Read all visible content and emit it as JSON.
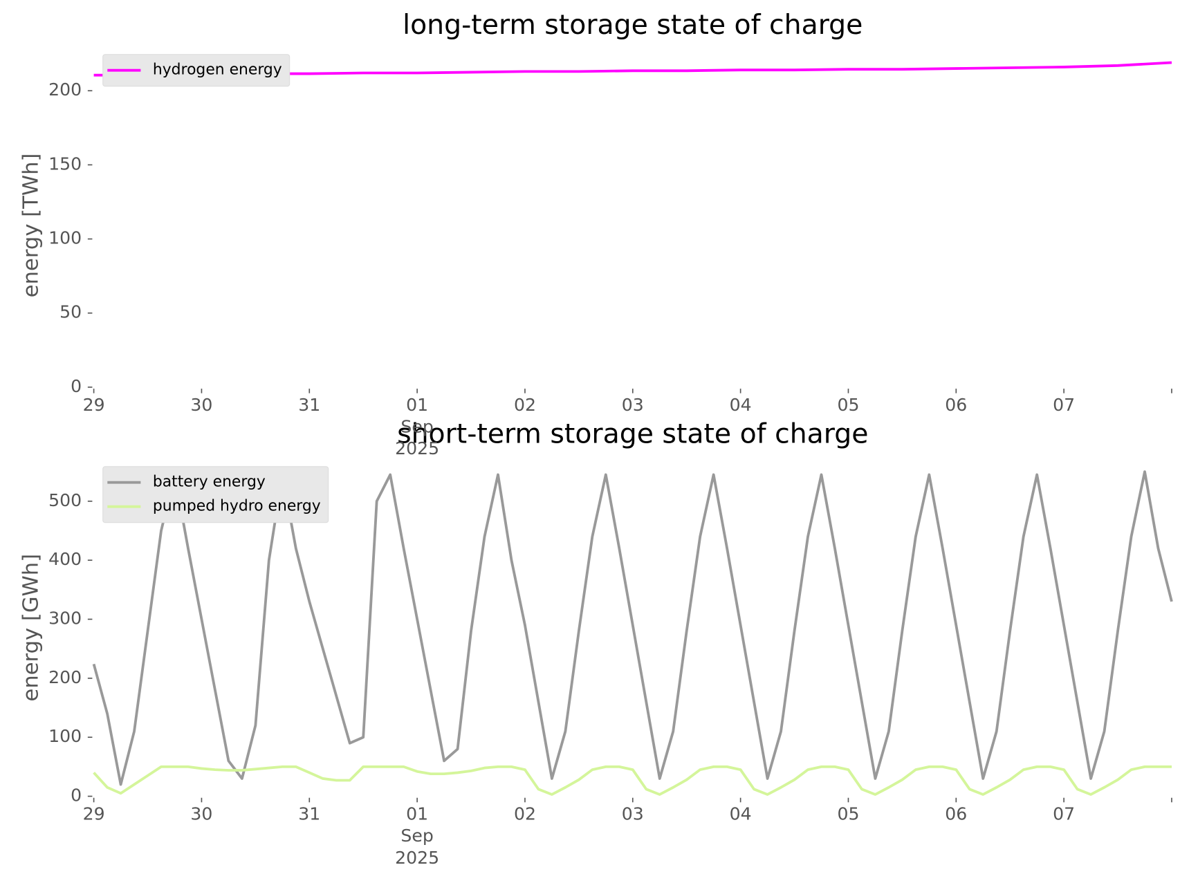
{
  "chart_data": [
    {
      "type": "line",
      "title": "long-term storage state of charge",
      "ylabel": "energy [TWh]",
      "x": [
        "2025-08-29 00:00",
        "2025-08-29 12:00",
        "2025-08-30 00:00",
        "2025-08-30 12:00",
        "2025-08-31 00:00",
        "2025-08-31 12:00",
        "2025-09-01 00:00",
        "2025-09-01 12:00",
        "2025-09-02 00:00",
        "2025-09-02 12:00",
        "2025-09-03 00:00",
        "2025-09-03 12:00",
        "2025-09-04 00:00",
        "2025-09-04 12:00",
        "2025-09-05 00:00",
        "2025-09-05 12:00",
        "2025-09-06 00:00",
        "2025-09-06 12:00",
        "2025-09-07 00:00",
        "2025-09-07 12:00",
        "2025-09-08 00:00"
      ],
      "xlim": [
        "2025-08-29",
        "2025-09-08"
      ],
      "xticks": [
        {
          "value": "2025-08-29",
          "label": "29"
        },
        {
          "value": "2025-08-30",
          "label": "30"
        },
        {
          "value": "2025-08-31",
          "label": "31"
        },
        {
          "value": "2025-09-01",
          "label": "01\nSep\n2025"
        },
        {
          "value": "2025-09-02",
          "label": "02"
        },
        {
          "value": "2025-09-03",
          "label": "03"
        },
        {
          "value": "2025-09-04",
          "label": "04"
        },
        {
          "value": "2025-09-05",
          "label": "05"
        },
        {
          "value": "2025-09-06",
          "label": "06"
        },
        {
          "value": "2025-09-07",
          "label": "07"
        },
        {
          "value": "2025-09-08",
          "label": null
        }
      ],
      "ylim": [
        0,
        225
      ],
      "yticks": [
        0,
        50,
        100,
        150,
        200
      ],
      "legend": "upper left",
      "series": [
        {
          "name": "hydrogen energy",
          "color": "#ff00ff",
          "values": [
            210.5,
            210.5,
            211,
            211.5,
            211.5,
            212,
            212,
            212.5,
            213,
            213,
            213.5,
            213.5,
            214,
            214,
            214.5,
            214.5,
            215,
            215.5,
            216,
            217,
            219
          ]
        }
      ]
    },
    {
      "type": "line",
      "title": "short-term storage state of charge",
      "ylabel": "energy [GWh]",
      "x": [
        "2025-08-29 00:00",
        "2025-08-29 03:00",
        "2025-08-29 06:00",
        "2025-08-29 09:00",
        "2025-08-29 12:00",
        "2025-08-29 15:00",
        "2025-08-29 18:00",
        "2025-08-29 21:00",
        "2025-08-30 00:00",
        "2025-08-30 03:00",
        "2025-08-30 06:00",
        "2025-08-30 09:00",
        "2025-08-30 12:00",
        "2025-08-30 15:00",
        "2025-08-30 18:00",
        "2025-08-30 21:00",
        "2025-08-31 00:00",
        "2025-08-31 03:00",
        "2025-08-31 06:00",
        "2025-08-31 09:00",
        "2025-08-31 12:00",
        "2025-08-31 15:00",
        "2025-08-31 18:00",
        "2025-08-31 21:00",
        "2025-09-01 00:00",
        "2025-09-01 03:00",
        "2025-09-01 06:00",
        "2025-09-01 09:00",
        "2025-09-01 12:00",
        "2025-09-01 15:00",
        "2025-09-01 18:00",
        "2025-09-01 21:00",
        "2025-09-02 00:00",
        "2025-09-02 03:00",
        "2025-09-02 06:00",
        "2025-09-02 09:00",
        "2025-09-02 12:00",
        "2025-09-02 15:00",
        "2025-09-02 18:00",
        "2025-09-02 21:00",
        "2025-09-03 00:00",
        "2025-09-03 03:00",
        "2025-09-03 06:00",
        "2025-09-03 09:00",
        "2025-09-03 12:00",
        "2025-09-03 15:00",
        "2025-09-03 18:00",
        "2025-09-03 21:00",
        "2025-09-04 00:00",
        "2025-09-04 03:00",
        "2025-09-04 06:00",
        "2025-09-04 09:00",
        "2025-09-04 12:00",
        "2025-09-04 15:00",
        "2025-09-04 18:00",
        "2025-09-04 21:00",
        "2025-09-05 00:00",
        "2025-09-05 03:00",
        "2025-09-05 06:00",
        "2025-09-05 09:00",
        "2025-09-05 12:00",
        "2025-09-05 15:00",
        "2025-09-05 18:00",
        "2025-09-05 21:00",
        "2025-09-06 00:00",
        "2025-09-06 03:00",
        "2025-09-06 06:00",
        "2025-09-06 09:00",
        "2025-09-06 12:00",
        "2025-09-06 15:00",
        "2025-09-06 18:00",
        "2025-09-06 21:00",
        "2025-09-07 00:00",
        "2025-09-07 03:00",
        "2025-09-07 06:00",
        "2025-09-07 09:00",
        "2025-09-07 12:00",
        "2025-09-07 15:00",
        "2025-09-07 18:00",
        "2025-09-07 21:00",
        "2025-09-08 00:00"
      ],
      "xlim": [
        "2025-08-29",
        "2025-09-08"
      ],
      "xticks": [
        {
          "value": "2025-08-29",
          "label": "29"
        },
        {
          "value": "2025-08-30",
          "label": "30"
        },
        {
          "value": "2025-08-31",
          "label": "31"
        },
        {
          "value": "2025-09-01",
          "label": "01\nSep\n2025"
        },
        {
          "value": "2025-09-02",
          "label": "02"
        },
        {
          "value": "2025-09-03",
          "label": "03"
        },
        {
          "value": "2025-09-04",
          "label": "04"
        },
        {
          "value": "2025-09-05",
          "label": "05"
        },
        {
          "value": "2025-09-06",
          "label": "06"
        },
        {
          "value": "2025-09-07",
          "label": "07"
        },
        {
          "value": "2025-09-08",
          "label": null
        }
      ],
      "ylim": [
        0,
        560
      ],
      "yticks": [
        0,
        100,
        200,
        300,
        400,
        500
      ],
      "legend": "upper left",
      "series": [
        {
          "name": "battery energy",
          "color": "#999999",
          "values": [
            224,
            140,
            20,
            110,
            280,
            450,
            545,
            420,
            300,
            180,
            60,
            30,
            120,
            400,
            545,
            420,
            330,
            250,
            170,
            90,
            100,
            500,
            545,
            420,
            300,
            180,
            60,
            80,
            280,
            440,
            545,
            400,
            290,
            160,
            30,
            110,
            280,
            440,
            545,
            420,
            290,
            160,
            30,
            110,
            280,
            440,
            545,
            420,
            290,
            160,
            30,
            110,
            280,
            440,
            545,
            420,
            290,
            160,
            30,
            110,
            280,
            440,
            545,
            420,
            290,
            160,
            30,
            110,
            280,
            440,
            545,
            420,
            290,
            160,
            30,
            110,
            280,
            440,
            550,
            420,
            330
          ]
        },
        {
          "name": "pumped hydro energy",
          "color": "#d4f59a",
          "values": [
            40,
            15,
            5,
            20,
            35,
            50,
            50,
            50,
            47,
            45,
            44,
            44,
            46,
            48,
            50,
            50,
            40,
            30,
            27,
            27,
            50,
            50,
            50,
            50,
            42,
            38,
            38,
            40,
            43,
            48,
            50,
            50,
            45,
            12,
            3,
            15,
            28,
            45,
            50,
            50,
            45,
            12,
            3,
            15,
            28,
            45,
            50,
            50,
            45,
            12,
            3,
            15,
            28,
            45,
            50,
            50,
            45,
            12,
            3,
            15,
            28,
            45,
            50,
            50,
            45,
            12,
            3,
            15,
            28,
            45,
            50,
            50,
            45,
            12,
            3,
            15,
            28,
            45,
            50,
            50,
            50
          ]
        }
      ]
    }
  ]
}
